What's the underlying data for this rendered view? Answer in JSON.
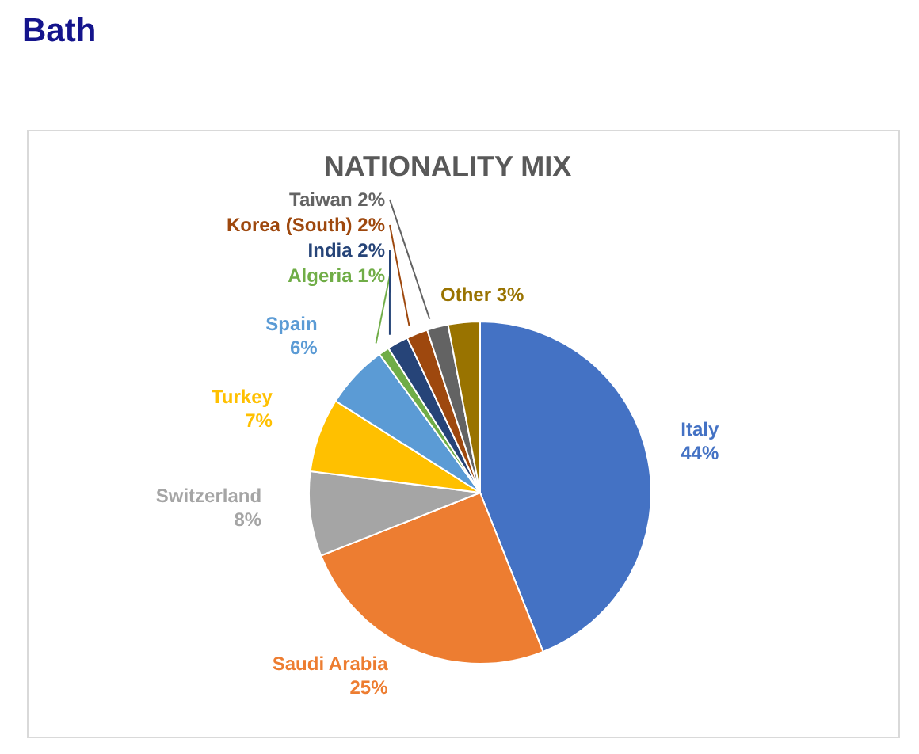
{
  "chart_data": {
    "type": "pie",
    "title": "Bath",
    "subtitle": "NATIONALITY MIX",
    "categories": [
      "Italy",
      "Saudi Arabia",
      "Switzerland",
      "Turkey",
      "Spain",
      "Algeria",
      "India",
      "Korea (South)",
      "Taiwan",
      "Other"
    ],
    "values": [
      44,
      25,
      8,
      7,
      6,
      1,
      2,
      2,
      2,
      3
    ],
    "value_labels": [
      "44%",
      "25%",
      "8%",
      "7%",
      "6%",
      "1%",
      "2%",
      "2%",
      "2%",
      "3%"
    ],
    "colors": [
      "#4472c4",
      "#ed7d31",
      "#a5a5a5",
      "#ffc000",
      "#5b9bd5",
      "#70ad47",
      "#264478",
      "#9e480e",
      "#636363",
      "#997300"
    ],
    "legend": false
  }
}
